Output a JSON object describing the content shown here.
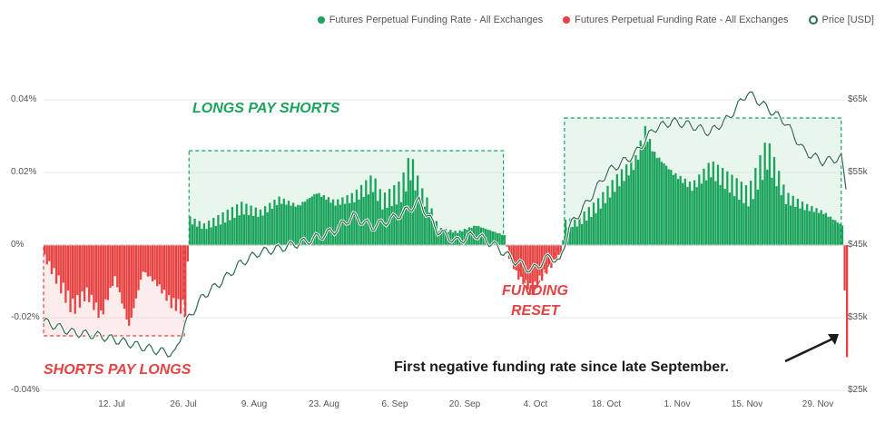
{
  "legend": [
    {
      "label": "Futures Perpetual Funding Rate - All Exchanges",
      "color": "#1aa35a",
      "style": "dot"
    },
    {
      "label": "Futures Perpetual Funding Rate - All Exchanges",
      "color": "#e64242",
      "style": "dot"
    },
    {
      "label": "Price [USD]",
      "color": "#2e6b4d",
      "style": "ring"
    }
  ],
  "annotations": {
    "longs": "LONGS PAY SHORTS",
    "shorts": "SHORTS PAY LONGS",
    "funding": "FUNDING",
    "reset": "RESET",
    "first_negative": "First negative funding rate since late September."
  },
  "chart_data": {
    "type": "area",
    "x_tick_labels": [
      "12. Jul",
      "26. Jul",
      "9. Aug",
      "23. Aug",
      "6. Sep",
      "20. Sep",
      "4. Oct",
      "18. Oct",
      "1. Nov",
      "15. Nov",
      "29. Nov"
    ],
    "y_left_tick_labels": [
      "0.04%",
      "0.02%",
      "0%",
      "-0.02%",
      "-0.04%"
    ],
    "y_right_tick_labels": [
      "$65k",
      "$55k",
      "$45k",
      "$35k",
      "$25k"
    ],
    "y_left_range": [
      -0.04,
      0.04
    ],
    "y_right_range": [
      25000,
      65000
    ],
    "x_range_days": [
      0,
      171
    ],
    "colors": {
      "positive": "#1aa35a",
      "negative": "#e64242",
      "price": "#2e6b4d",
      "grid": "#eeeeee"
    },
    "funding_rate_percent": [
      [
        0,
        -0.004
      ],
      [
        3,
        -0.012
      ],
      [
        6,
        -0.02
      ],
      [
        9,
        -0.015
      ],
      [
        12,
        -0.022
      ],
      [
        15,
        -0.01
      ],
      [
        18,
        -0.025
      ],
      [
        21,
        -0.008
      ],
      [
        24,
        -0.012
      ],
      [
        27,
        -0.018
      ],
      [
        30,
        -0.02
      ],
      [
        31,
        0.008
      ],
      [
        34,
        0.006
      ],
      [
        38,
        0.009
      ],
      [
        42,
        0.012
      ],
      [
        46,
        0.01
      ],
      [
        50,
        0.014
      ],
      [
        54,
        0.012
      ],
      [
        58,
        0.016
      ],
      [
        62,
        0.013
      ],
      [
        66,
        0.015
      ],
      [
        70,
        0.02
      ],
      [
        72,
        0.014
      ],
      [
        76,
        0.018
      ],
      [
        78,
        0.026
      ],
      [
        80,
        0.017
      ],
      [
        82,
        0.012
      ],
      [
        84,
        0.005
      ],
      [
        88,
        0.004
      ],
      [
        92,
        0.006
      ],
      [
        96,
        0.004
      ],
      [
        98,
        0.003
      ],
      [
        99,
        -0.004
      ],
      [
        101,
        -0.01
      ],
      [
        104,
        -0.014
      ],
      [
        107,
        -0.008
      ],
      [
        110,
        -0.003
      ],
      [
        111,
        0.007
      ],
      [
        114,
        0.008
      ],
      [
        118,
        0.013
      ],
      [
        122,
        0.02
      ],
      [
        126,
        0.026
      ],
      [
        128,
        0.035
      ],
      [
        130,
        0.028
      ],
      [
        134,
        0.022
      ],
      [
        138,
        0.018
      ],
      [
        142,
        0.024
      ],
      [
        146,
        0.02
      ],
      [
        150,
        0.016
      ],
      [
        154,
        0.03
      ],
      [
        158,
        0.015
      ],
      [
        162,
        0.012
      ],
      [
        166,
        0.01
      ],
      [
        170,
        0.006
      ],
      [
        171,
        -0.034
      ]
    ],
    "price_usd": [
      [
        0,
        34500
      ],
      [
        6,
        33000
      ],
      [
        12,
        32500
      ],
      [
        18,
        31500
      ],
      [
        24,
        30500
      ],
      [
        28,
        30000
      ],
      [
        30,
        34000
      ],
      [
        34,
        38000
      ],
      [
        38,
        40000
      ],
      [
        42,
        42500
      ],
      [
        46,
        44000
      ],
      [
        50,
        44500
      ],
      [
        56,
        45500
      ],
      [
        62,
        47000
      ],
      [
        66,
        49000
      ],
      [
        70,
        47500
      ],
      [
        74,
        48500
      ],
      [
        78,
        50000
      ],
      [
        80,
        51000
      ],
      [
        84,
        47000
      ],
      [
        88,
        45500
      ],
      [
        92,
        46500
      ],
      [
        96,
        45000
      ],
      [
        100,
        43000
      ],
      [
        104,
        41500
      ],
      [
        108,
        43500
      ],
      [
        110,
        42500
      ],
      [
        112,
        47500
      ],
      [
        116,
        51000
      ],
      [
        120,
        55000
      ],
      [
        126,
        57500
      ],
      [
        130,
        61000
      ],
      [
        134,
        62000
      ],
      [
        138,
        61500
      ],
      [
        142,
        60500
      ],
      [
        146,
        62500
      ],
      [
        150,
        66000
      ],
      [
        154,
        64000
      ],
      [
        158,
        62000
      ],
      [
        162,
        58000
      ],
      [
        166,
        56500
      ],
      [
        170,
        57000
      ],
      [
        171,
        53000
      ]
    ]
  }
}
